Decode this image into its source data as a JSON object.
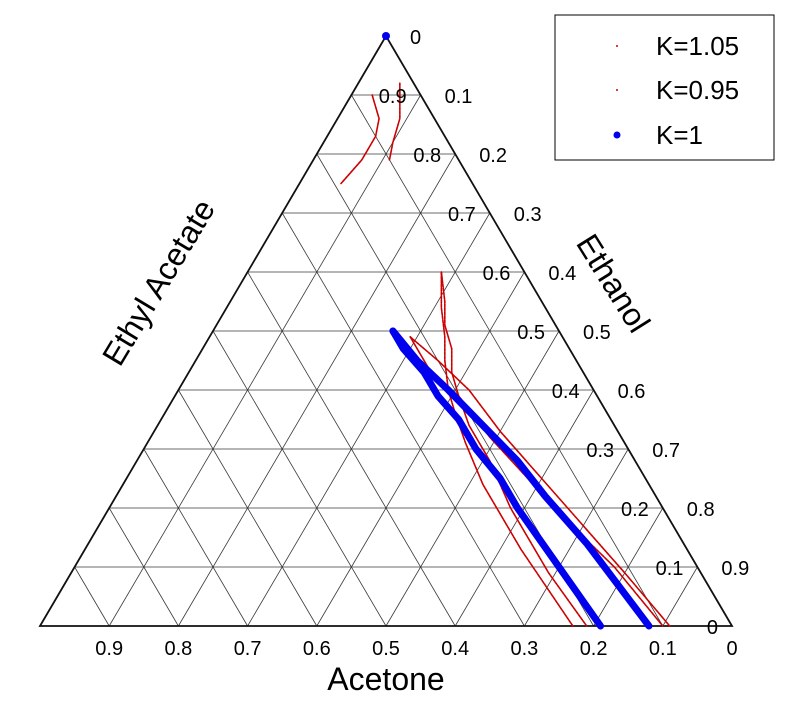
{
  "chart_data": {
    "type": "scatter",
    "subtype": "ternary",
    "title": "",
    "axes": {
      "bottom": {
        "label": "Acetone",
        "ticks": [
          "0.9",
          "0.8",
          "0.7",
          "0.6",
          "0.5",
          "0.4",
          "0.3",
          "0.2",
          "0.1",
          "0"
        ]
      },
      "left": {
        "label": "Ethyl Acetate",
        "ticks": [
          "0",
          "0.1",
          "0.2",
          "0.3",
          "0.4",
          "0.5",
          "0.6",
          "0.7",
          "0.8",
          "0.9"
        ]
      },
      "right": {
        "label": "Ethanol",
        "ticks": [
          "0",
          "0.1",
          "0.2",
          "0.3",
          "0.4",
          "0.5",
          "0.6",
          "0.7",
          "0.8",
          "0.9"
        ]
      }
    },
    "grid": true,
    "grid_step": 0.1,
    "legend": {
      "position": "top-right",
      "entries": [
        "K=1.05",
        "K=0.95",
        "K=1"
      ]
    },
    "series": [
      {
        "name": "K=1.05",
        "color": "#cc0000",
        "marker": "dot-small",
        "curves": [
          [
            [
              0.07,
              0.9
            ],
            [
              0.08,
              0.86
            ],
            [
              0.1,
              0.83
            ],
            [
              0.14,
              0.79
            ],
            [
              0.19,
              0.75
            ]
          ],
          [
            [
              0.12,
              0.6
            ],
            [
              0.14,
              0.55
            ],
            [
              0.16,
              0.51
            ],
            [
              0.17,
              0.47
            ],
            [
              0.19,
              0.43
            ],
            [
              0.2,
              0.39
            ],
            [
              0.21,
              0.34
            ],
            [
              0.21,
              0.28
            ],
            [
              0.22,
              0.2
            ],
            [
              0.22,
              0.09
            ],
            [
              0.21,
              0.0
            ]
          ],
          [
            [
              0.22,
              0.49
            ],
            [
              0.22,
              0.42
            ],
            [
              0.2,
              0.39
            ],
            [
              0.19,
              0.32
            ],
            [
              0.17,
              0.25
            ],
            [
              0.15,
              0.18
            ],
            [
              0.12,
              0.1
            ],
            [
              0.1,
              0.0
            ]
          ]
        ]
      },
      {
        "name": "K=0.95",
        "color": "#cc0000",
        "marker": "dot-small",
        "curves": [
          [
            [
              0.02,
              0.92
            ],
            [
              0.05,
              0.86
            ],
            [
              0.08,
              0.82
            ],
            [
              0.1,
              0.79
            ]
          ],
          [
            [
              0.12,
              0.6
            ],
            [
              0.15,
              0.54
            ],
            [
              0.17,
              0.49
            ],
            [
              0.19,
              0.45
            ],
            [
              0.21,
              0.4
            ],
            [
              0.22,
              0.36
            ],
            [
              0.23,
              0.31
            ],
            [
              0.24,
              0.24
            ],
            [
              0.24,
              0.13
            ],
            [
              0.23,
              0.0
            ]
          ],
          [
            [
              0.22,
              0.49
            ],
            [
              0.2,
              0.45
            ],
            [
              0.18,
              0.4
            ],
            [
              0.17,
              0.33
            ],
            [
              0.15,
              0.25
            ],
            [
              0.13,
              0.17
            ],
            [
              0.11,
              0.09
            ],
            [
              0.09,
              0.0
            ]
          ]
        ]
      },
      {
        "name": "K=1",
        "color": "#0000ee",
        "marker": "dot-large",
        "points": [
          [
            0.0,
            1.0
          ]
        ],
        "curves": [
          [
            [
              0.24,
              0.5
            ],
            [
              0.24,
              0.47
            ],
            [
              0.23,
              0.43
            ],
            [
              0.23,
              0.39
            ],
            [
              0.22,
              0.35
            ],
            [
              0.22,
              0.3
            ],
            [
              0.21,
              0.25
            ],
            [
              0.21,
              0.2
            ],
            [
              0.2,
              0.1
            ],
            [
              0.19,
              0.0
            ]
          ],
          [
            [
              0.24,
              0.5
            ],
            [
              0.23,
              0.45
            ],
            [
              0.21,
              0.4
            ],
            [
              0.19,
              0.34
            ],
            [
              0.17,
              0.28
            ],
            [
              0.16,
              0.22
            ],
            [
              0.14,
              0.14
            ],
            [
              0.13,
              0.07
            ],
            [
              0.12,
              0.0
            ]
          ]
        ]
      }
    ]
  }
}
